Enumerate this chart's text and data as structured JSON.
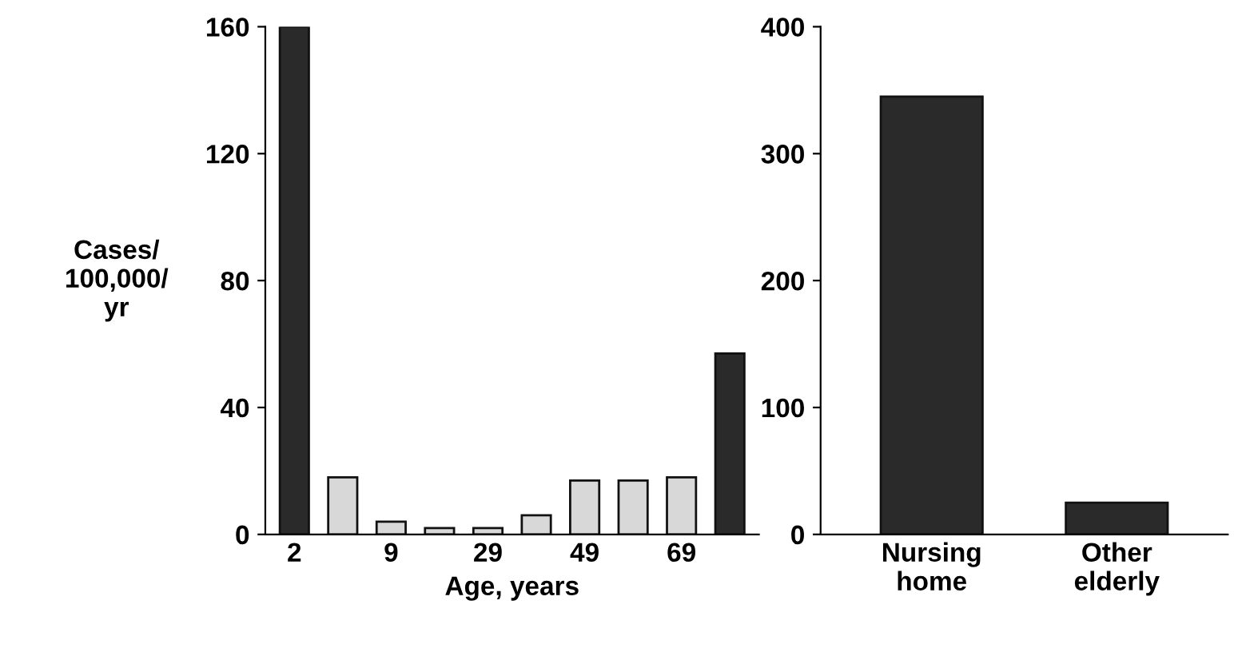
{
  "chart_data": [
    {
      "type": "bar",
      "ylabel": "Cases/\n100,000/\nyr",
      "xlabel": "Age, years",
      "categories": [
        "2",
        null,
        "9",
        null,
        "29",
        null,
        "49",
        null,
        "69",
        null
      ],
      "values": [
        160,
        18,
        4,
        2,
        2,
        6,
        17,
        17,
        18,
        57
      ],
      "colors": [
        "#2a2a2a",
        "#d8d8d8",
        "#d8d8d8",
        "#d8d8d8",
        "#d8d8d8",
        "#d8d8d8",
        "#d8d8d8",
        "#d8d8d8",
        "#d8d8d8",
        "#2a2a2a"
      ],
      "ylim": [
        0,
        160
      ],
      "yticks": [
        0,
        40,
        80,
        120,
        160
      ],
      "grid": false
    },
    {
      "type": "bar",
      "categories": [
        "Nursing\nhome",
        "Other\nelderly"
      ],
      "values": [
        345,
        25
      ],
      "colors": [
        "#2a2a2a",
        "#2a2a2a"
      ],
      "ylim": [
        0,
        400
      ],
      "yticks": [
        0,
        100,
        200,
        300,
        400
      ],
      "grid": false
    }
  ]
}
